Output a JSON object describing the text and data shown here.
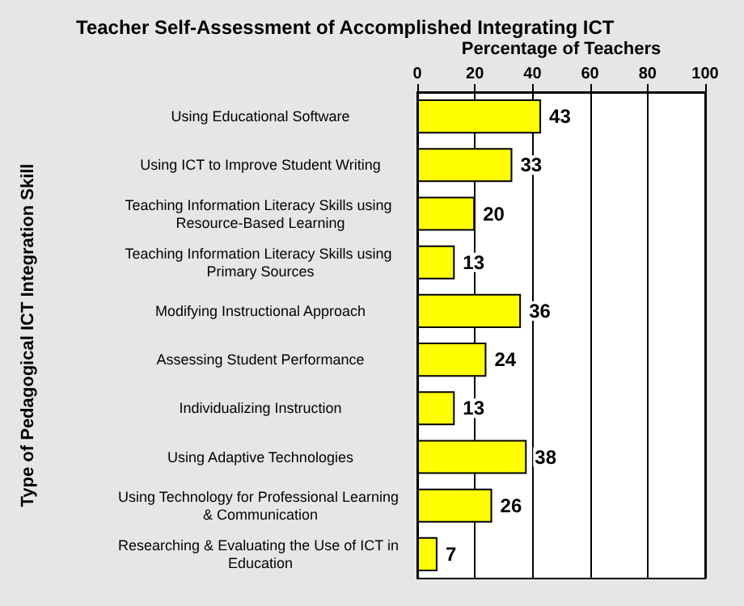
{
  "chart_data": {
    "type": "bar",
    "orientation": "horizontal",
    "title": "Teacher Self-Assessment of Accomplished Integrating ICT",
    "xlabel": "Percentage of Teachers",
    "ylabel": "Type of Pedagogical ICT Integration Skill",
    "categories": [
      "Using Educational Software",
      "Using ICT to Improve Student Writing",
      "Teaching Information Literacy Skills using Resource-Based Learning",
      "Teaching Information Literacy Skills using Primary Sources",
      "Modifying Instructional Approach",
      "Assessing Student Performance",
      "Individualizing Instruction",
      "Using Adaptive Technologies",
      "Using Technology for Professional Learning & Communication",
      "Researching & Evaluating the Use of ICT in Education"
    ],
    "values": [
      43,
      33,
      20,
      13,
      36,
      24,
      13,
      38,
      26,
      7
    ],
    "color": "#ffff00",
    "xlim": [
      0,
      100
    ],
    "xticks": [
      0,
      20,
      40,
      60,
      80,
      100
    ],
    "grid": "x",
    "data_labels": true
  }
}
